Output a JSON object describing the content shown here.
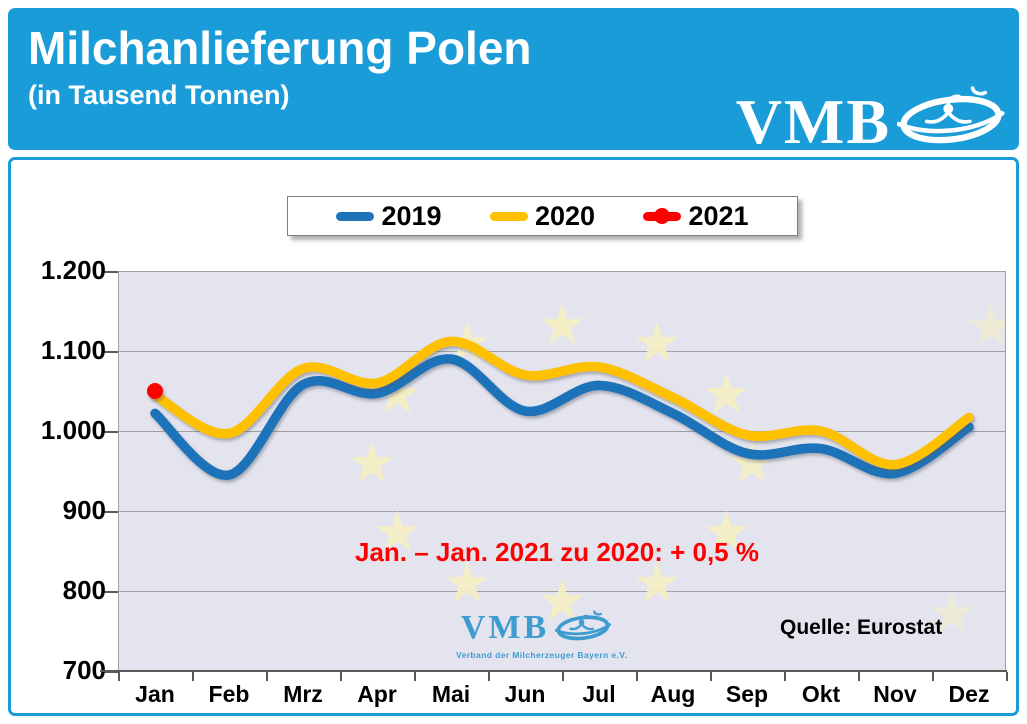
{
  "header": {
    "title": "Milchanlieferung Polen",
    "subtitle": "(in Tausend Tonnen)",
    "logo_text": "VMB",
    "bg_color": "#1A9CD9"
  },
  "legend": [
    {
      "label": "2019",
      "color": "#1E73B9",
      "marker": "line"
    },
    {
      "label": "2020",
      "color": "#FFC000",
      "marker": "line"
    },
    {
      "label": "2021",
      "color": "#FF0000",
      "marker": "line-dot"
    }
  ],
  "chart_data": {
    "type": "line",
    "title": "Milchanlieferung Polen (in Tausend Tonnen)",
    "categories": [
      "Jan",
      "Feb",
      "Mrz",
      "Apr",
      "Mai",
      "Jun",
      "Jul",
      "Aug",
      "Sep",
      "Okt",
      "Nov",
      "Dez"
    ],
    "series": [
      {
        "name": "2019",
        "color": "#1E73B9",
        "values": [
          1022,
          945,
          1058,
          1047,
          1090,
          1025,
          1057,
          1022,
          972,
          978,
          947,
          1005
        ]
      },
      {
        "name": "2020",
        "color": "#FFC000",
        "values": [
          1045,
          997,
          1078,
          1060,
          1112,
          1070,
          1080,
          1042,
          995,
          1000,
          958,
          1017
        ]
      },
      {
        "name": "2021",
        "color": "#FF0000",
        "marker": "dot",
        "values": [
          1050
        ]
      }
    ],
    "ylim": [
      700,
      1200
    ],
    "ytick_labels": [
      "1.200",
      "1.100",
      "1.000",
      "900",
      "800",
      "700"
    ],
    "grid": true,
    "legend_position": "top-center",
    "plot_bg": "#E4E4EF"
  },
  "annotation": {
    "text": "Jan. – Jan. 2021 zu 2020: + 0,5 %",
    "color": "#FF0000"
  },
  "source": {
    "text": "Quelle: Eurostat"
  },
  "watermark": {
    "logo_text": "VMB",
    "slogan": "Verband der Milcherzeuger Bayern e.V.",
    "color": "#3E9CD1"
  }
}
